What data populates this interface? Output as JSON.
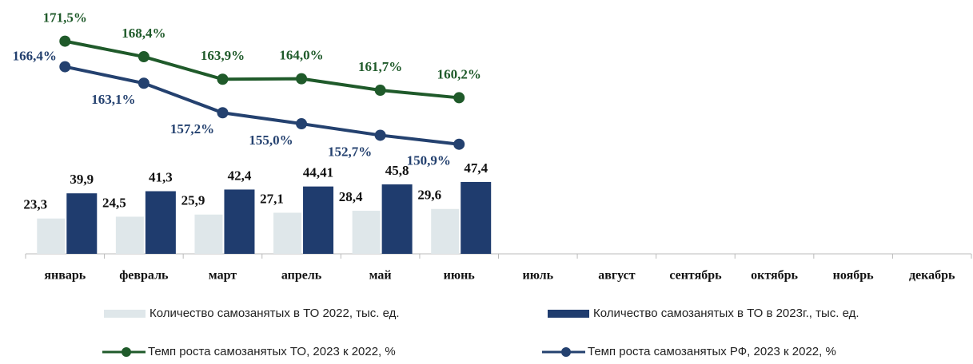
{
  "chart_data": {
    "type": "combo",
    "categories": [
      "январь",
      "февраль",
      "март",
      "апрель",
      "май",
      "июнь",
      "июль",
      "август",
      "сентябрь",
      "октябрь",
      "ноябрь",
      "декабрь"
    ],
    "ylim": [
      0,
      160
    ],
    "y2lim": [
      129,
      177.5
    ],
    "series": [
      {
        "name": "Количество самозанятых в ТО 2022, тыс. ед.",
        "type": "bar",
        "color": "#dfe7ea",
        "values": [
          23.3,
          24.5,
          25.9,
          27.1,
          28.4,
          29.6,
          null,
          null,
          null,
          null,
          null,
          null
        ],
        "value_labels": [
          "23,3",
          "24,5",
          "25,9",
          "27,1",
          "28,4",
          "29,6",
          null,
          null,
          null,
          null,
          null,
          null
        ]
      },
      {
        "name": "Количество самозанятых в ТО в 2023г., тыс. ед.",
        "type": "bar",
        "color": "#1f3c6e",
        "values": [
          39.9,
          41.3,
          42.4,
          44.41,
          45.8,
          47.4,
          null,
          null,
          null,
          null,
          null,
          null
        ],
        "value_labels": [
          "39,9",
          "41,3",
          "42,4",
          "44,41",
          "45,8",
          "47,4",
          null,
          null,
          null,
          null,
          null,
          null
        ]
      },
      {
        "name": "Темп роста самозанятых ТО, 2023 к 2022, %",
        "type": "line",
        "axis": "y2",
        "color": "#1f5a2a",
        "values": [
          171.5,
          168.4,
          163.9,
          164.0,
          161.7,
          160.2,
          null,
          null,
          null,
          null,
          null,
          null
        ],
        "value_labels": [
          "171,5%",
          "168,4%",
          "163,9%",
          "164,0%",
          "161,7%",
          "160,2%",
          null,
          null,
          null,
          null,
          null,
          null
        ]
      },
      {
        "name": "Темп роста самозанятых РФ, 2023 к 2022, %",
        "type": "line",
        "axis": "y2",
        "color": "#24416f",
        "values": [
          166.4,
          163.1,
          157.2,
          155.0,
          152.7,
          150.9,
          null,
          null,
          null,
          null,
          null,
          null
        ],
        "value_labels": [
          "166,4%",
          "163,1%",
          "157,2%",
          "155,0%",
          "152,7%",
          "150,9%",
          null,
          null,
          null,
          null,
          null,
          null
        ]
      }
    ]
  }
}
